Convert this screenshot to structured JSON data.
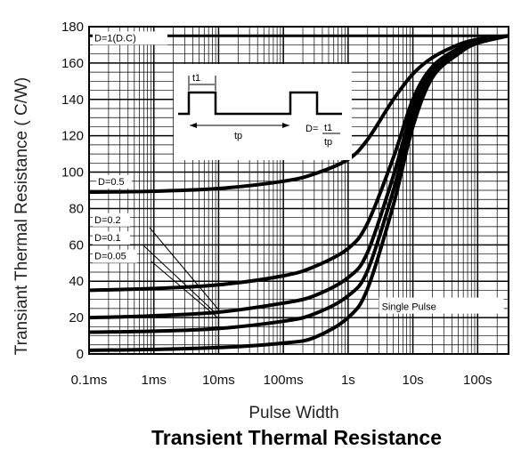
{
  "chart_data": {
    "type": "line",
    "title": "Transient Thermal Resistance",
    "xlabel": "Pulse Width",
    "ylabel": "Transiant Thermal Resistance ( C/W)",
    "x_scale": "log",
    "x_ticks": [
      0.0001,
      0.001,
      0.01,
      0.1,
      1,
      10,
      100
    ],
    "x_tick_labels": [
      "0.1ms",
      "1ms",
      "10ms",
      "100ms",
      "1s",
      "10s",
      "100s"
    ],
    "xlim": [
      0.0001,
      300
    ],
    "ylim": [
      0,
      180
    ],
    "y_ticks": [
      0,
      20,
      40,
      60,
      80,
      100,
      120,
      140,
      160,
      180
    ],
    "grid": true,
    "series": [
      {
        "name": "D=1(D.C)",
        "x": [
          0.0001,
          300
        ],
        "y": [
          175,
          175
        ]
      },
      {
        "name": "D=0.5",
        "x": [
          0.0001,
          0.001,
          0.01,
          0.1,
          0.3,
          1,
          2,
          5,
          10,
          20,
          50,
          100,
          300
        ],
        "y": [
          89,
          89.5,
          91,
          95,
          99,
          107,
          118,
          140,
          154,
          163,
          170,
          173,
          175
        ]
      },
      {
        "name": "D=0.2",
        "x": [
          0.0001,
          0.001,
          0.01,
          0.1,
          0.3,
          1,
          2,
          5,
          10,
          20,
          50,
          100,
          300
        ],
        "y": [
          35,
          36,
          38,
          43,
          48,
          58,
          72,
          108,
          140,
          158,
          168,
          172,
          175
        ]
      },
      {
        "name": "D=0.1",
        "x": [
          0.0001,
          0.001,
          0.01,
          0.1,
          0.3,
          1,
          2,
          5,
          10,
          20,
          50,
          100,
          300
        ],
        "y": [
          20,
          21,
          23,
          28,
          32,
          42,
          56,
          98,
          135,
          156,
          167,
          172,
          175
        ]
      },
      {
        "name": "D=0.05",
        "x": [
          0.0001,
          0.001,
          0.01,
          0.1,
          0.3,
          1,
          2,
          5,
          10,
          20,
          50,
          100,
          300
        ],
        "y": [
          12,
          12.5,
          14,
          18,
          22,
          32,
          46,
          90,
          130,
          154,
          166,
          171,
          175
        ]
      },
      {
        "name": "Single Pulse",
        "x": [
          0.0001,
          0.001,
          0.01,
          0.1,
          0.3,
          1,
          2,
          5,
          10,
          20,
          50,
          100,
          300
        ],
        "y": [
          2,
          2.5,
          3.5,
          6,
          9,
          20,
          36,
          82,
          125,
          152,
          165,
          171,
          175
        ]
      }
    ],
    "inset": {
      "labels": [
        "t1",
        "tp",
        "D=",
        "t1",
        "tp"
      ]
    }
  }
}
